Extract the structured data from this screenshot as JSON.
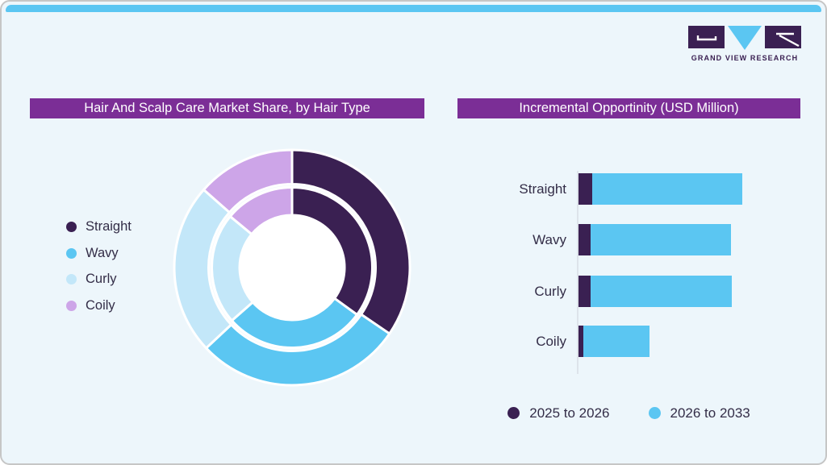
{
  "colors": {
    "top_bar": "#5bc6f2",
    "background": "#edf6fb",
    "title_bar": "#7b2e96",
    "dark_purple": "#3a2052",
    "sky_blue": "#5bc6f2",
    "light_blue": "#c3e7f9",
    "lavender": "#cda5e8",
    "text": "#332d47",
    "axis": "#dde3ea"
  },
  "logo": {
    "brand_text": "GRAND VIEW RESEARCH"
  },
  "chart_data": [
    {
      "type": "pie",
      "subtype": "double-ring-donut",
      "title": "Hair And Scalp Care Market Share, by Hair Type",
      "categories": [
        "Straight",
        "Wavy",
        "Curly",
        "Coily"
      ],
      "colors": [
        "#3a2052",
        "#5bc6f2",
        "#c3e7f9",
        "#cda5e8"
      ],
      "series": [
        {
          "name": "outer-ring",
          "values": [
            34.5,
            28.5,
            23.5,
            13.5
          ]
        },
        {
          "name": "inner-ring",
          "values": [
            35.0,
            28.5,
            22.5,
            14.0
          ]
        }
      ],
      "unit": "percent-share-estimated",
      "start_angle": "12-oclock",
      "direction": "clockwise",
      "legend_position": "left",
      "value_labels_shown": false
    },
    {
      "type": "bar",
      "orientation": "horizontal",
      "stacked": true,
      "title": "Incremental Opportinity (USD Million)",
      "categories": [
        "Straight",
        "Wavy",
        "Curly",
        "Coily"
      ],
      "series": [
        {
          "name": "2025 to 2026",
          "color": "#3a2052",
          "values": [
            8.5,
            7.5,
            7.5,
            3.0
          ]
        },
        {
          "name": "2026 to 2033",
          "color": "#5bc6f2",
          "values": [
            91.5,
            85.5,
            86.0,
            40.5
          ]
        }
      ],
      "unit": "relative-units-estimated",
      "xlim": [
        0,
        133
      ],
      "grid": false,
      "legend_position": "bottom",
      "value_labels_shown": false
    }
  ]
}
